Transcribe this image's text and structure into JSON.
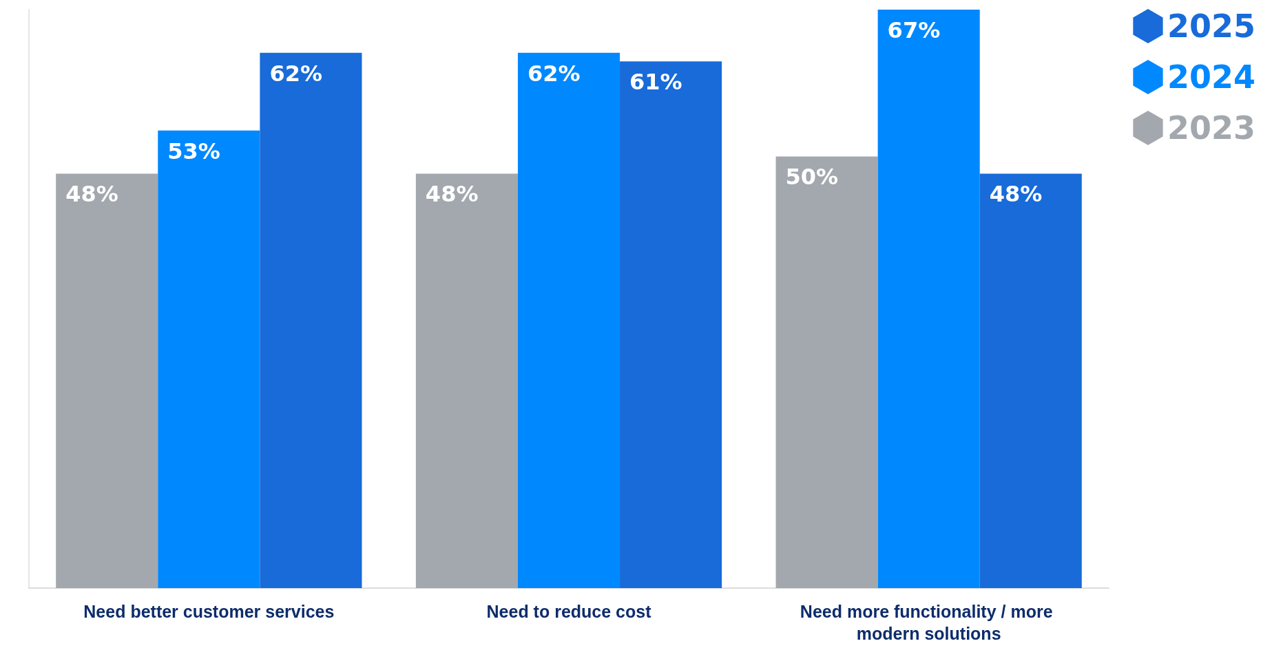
{
  "chart_data": {
    "type": "bar",
    "categories": [
      "Need better customer services",
      "Need to reduce cost",
      "Need more functionality / more modern solutions"
    ],
    "series": [
      {
        "name": "2023",
        "color": "#a3a8ae",
        "values": [
          48,
          48,
          50
        ],
        "value_labels": [
          "48%",
          "48%",
          "50%"
        ]
      },
      {
        "name": "2024",
        "color": "#0088ff",
        "values": [
          53,
          62,
          67
        ],
        "value_labels": [
          "53%",
          "62%",
          "67%"
        ]
      },
      {
        "name": "2025",
        "color": "#186bd9",
        "values": [
          62,
          61,
          48
        ],
        "value_labels": [
          "62%",
          "61%",
          "48%"
        ]
      }
    ],
    "legend": "top right",
    "grid": false
  }
}
